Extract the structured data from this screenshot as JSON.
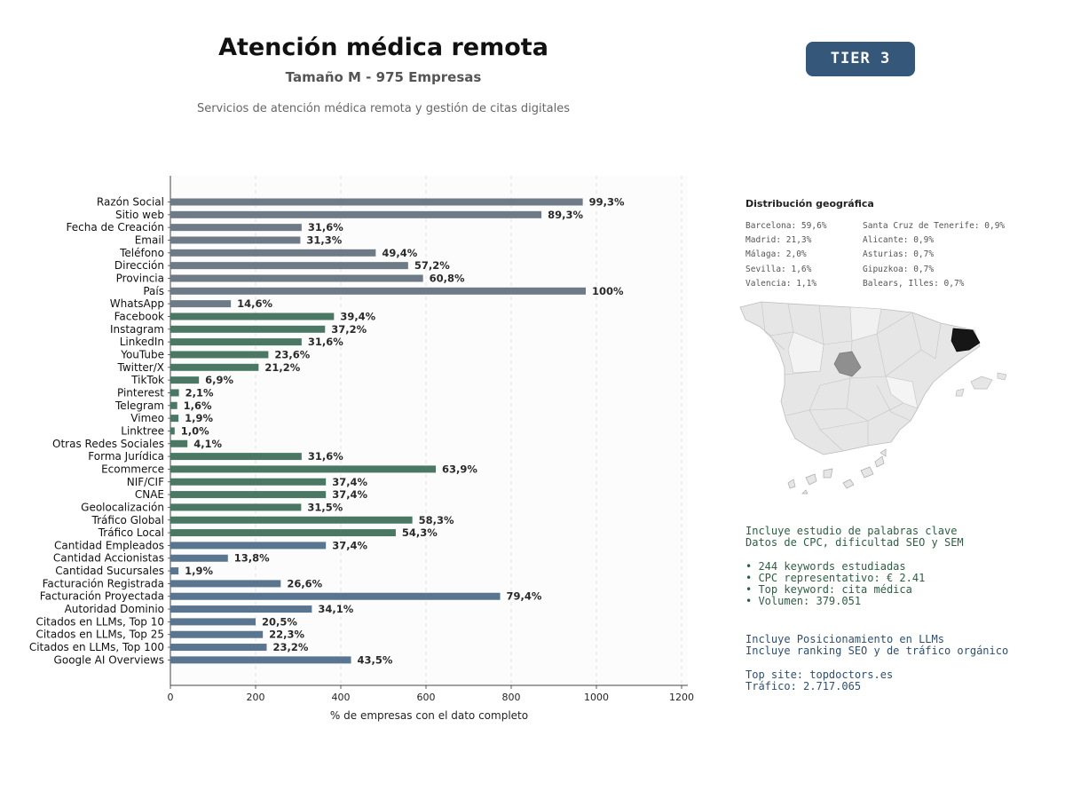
{
  "header": {
    "title": "Atención médica remota",
    "subtitle": "Tamaño M - 975 Empresas",
    "description": "Servicios de atención médica remota y gestión de citas digitales",
    "tier_badge": "TIER 3"
  },
  "chart_data": {
    "type": "bar",
    "orientation": "horizontal",
    "xlabel": "% de empresas con el dato completo",
    "xlim": [
      0,
      1200
    ],
    "xticks": [
      "0",
      "200",
      "400",
      "600",
      "800",
      "1000",
      "1200"
    ],
    "grid": "vertical dashed",
    "categories": [
      "Razón Social",
      "Sitio web",
      "Fecha de Creación",
      "Email",
      "Teléfono",
      "Dirección",
      "Provincia",
      "País",
      "WhatsApp",
      "Facebook",
      "Instagram",
      "LinkedIn",
      "YouTube",
      "Twitter/X",
      "TikTok",
      "Pinterest",
      "Telegram",
      "Vimeo",
      "Linktree",
      "Otras Redes Sociales",
      "Forma Jurídica",
      "Ecommerce",
      "NIF/CIF",
      "CNAE",
      "Geolocalización",
      "Tráfico Global",
      "Tráfico Local",
      "Cantidad Empleados",
      "Cantidad Accionistas",
      "Cantidad Sucursales",
      "Facturación Registrada",
      "Facturación Proyectada",
      "Autoridad Dominio",
      "Citados en LLMs, Top 10",
      "Citados en LLMs, Top 25",
      "Citados en LLMs, Top 100",
      "Google AI Overviews"
    ],
    "values": [
      968,
      871,
      308,
      305,
      482,
      558,
      593,
      975,
      142,
      384,
      363,
      308,
      230,
      207,
      67,
      20,
      16,
      19,
      10,
      40,
      308,
      623,
      365,
      365,
      307,
      568,
      529,
      365,
      135,
      19,
      259,
      774,
      332,
      200,
      217,
      226,
      424
    ],
    "data_labels": [
      "99,3%",
      "89,3%",
      "31,6%",
      "31,3%",
      "49,4%",
      "57,2%",
      "60,8%",
      "100%",
      "14,6%",
      "39,4%",
      "37,2%",
      "31,6%",
      "23,6%",
      "21,2%",
      "6,9%",
      "2,1%",
      "1,6%",
      "1,9%",
      "1,0%",
      "4,1%",
      "31,6%",
      "63,9%",
      "37,4%",
      "37,4%",
      "31,5%",
      "58,3%",
      "54,3%",
      "37,4%",
      "13,8%",
      "1,9%",
      "26,6%",
      "79,4%",
      "34,1%",
      "20,5%",
      "22,3%",
      "23,2%",
      "43,5%"
    ],
    "groups": [
      {
        "color": "#6e7a86",
        "from": 0,
        "to": 8
      },
      {
        "color": "#4a7864",
        "from": 9,
        "to": 26
      },
      {
        "color": "#5a7590",
        "from": 27,
        "to": 36
      }
    ]
  },
  "geo": {
    "title": "Distribución geográfica",
    "col1": [
      "Barcelona: 59,6%",
      "Madrid: 21,3%",
      "Málaga: 2,0%",
      "Sevilla: 1,6%",
      "Valencia: 1,1%"
    ],
    "col2": [
      "Santa Cruz de Tenerife: 0,9%",
      "Alicante: 0,9%",
      "Asturias: 0,7%",
      "Gipuzkoa: 0,7%",
      "Balears, Illes: 0,7%"
    ]
  },
  "keywords": {
    "line1": "Incluye estudio de palabras clave",
    "line2": "Datos de CPC, dificultad SEO y SEM",
    "b1": "• 244 keywords estudiadas",
    "b2": "• CPC representativo: € 2.41",
    "b3": "• Top keyword: cita médica",
    "b4": "• Volumen: 379.051"
  },
  "llm": {
    "line1": "Incluye Posicionamiento en LLMs",
    "line2": "Incluye ranking SEO y de tráfico orgánico",
    "line3": "Top site: topdoctors.es",
    "line4": "Tráfico: 2.717.065"
  }
}
